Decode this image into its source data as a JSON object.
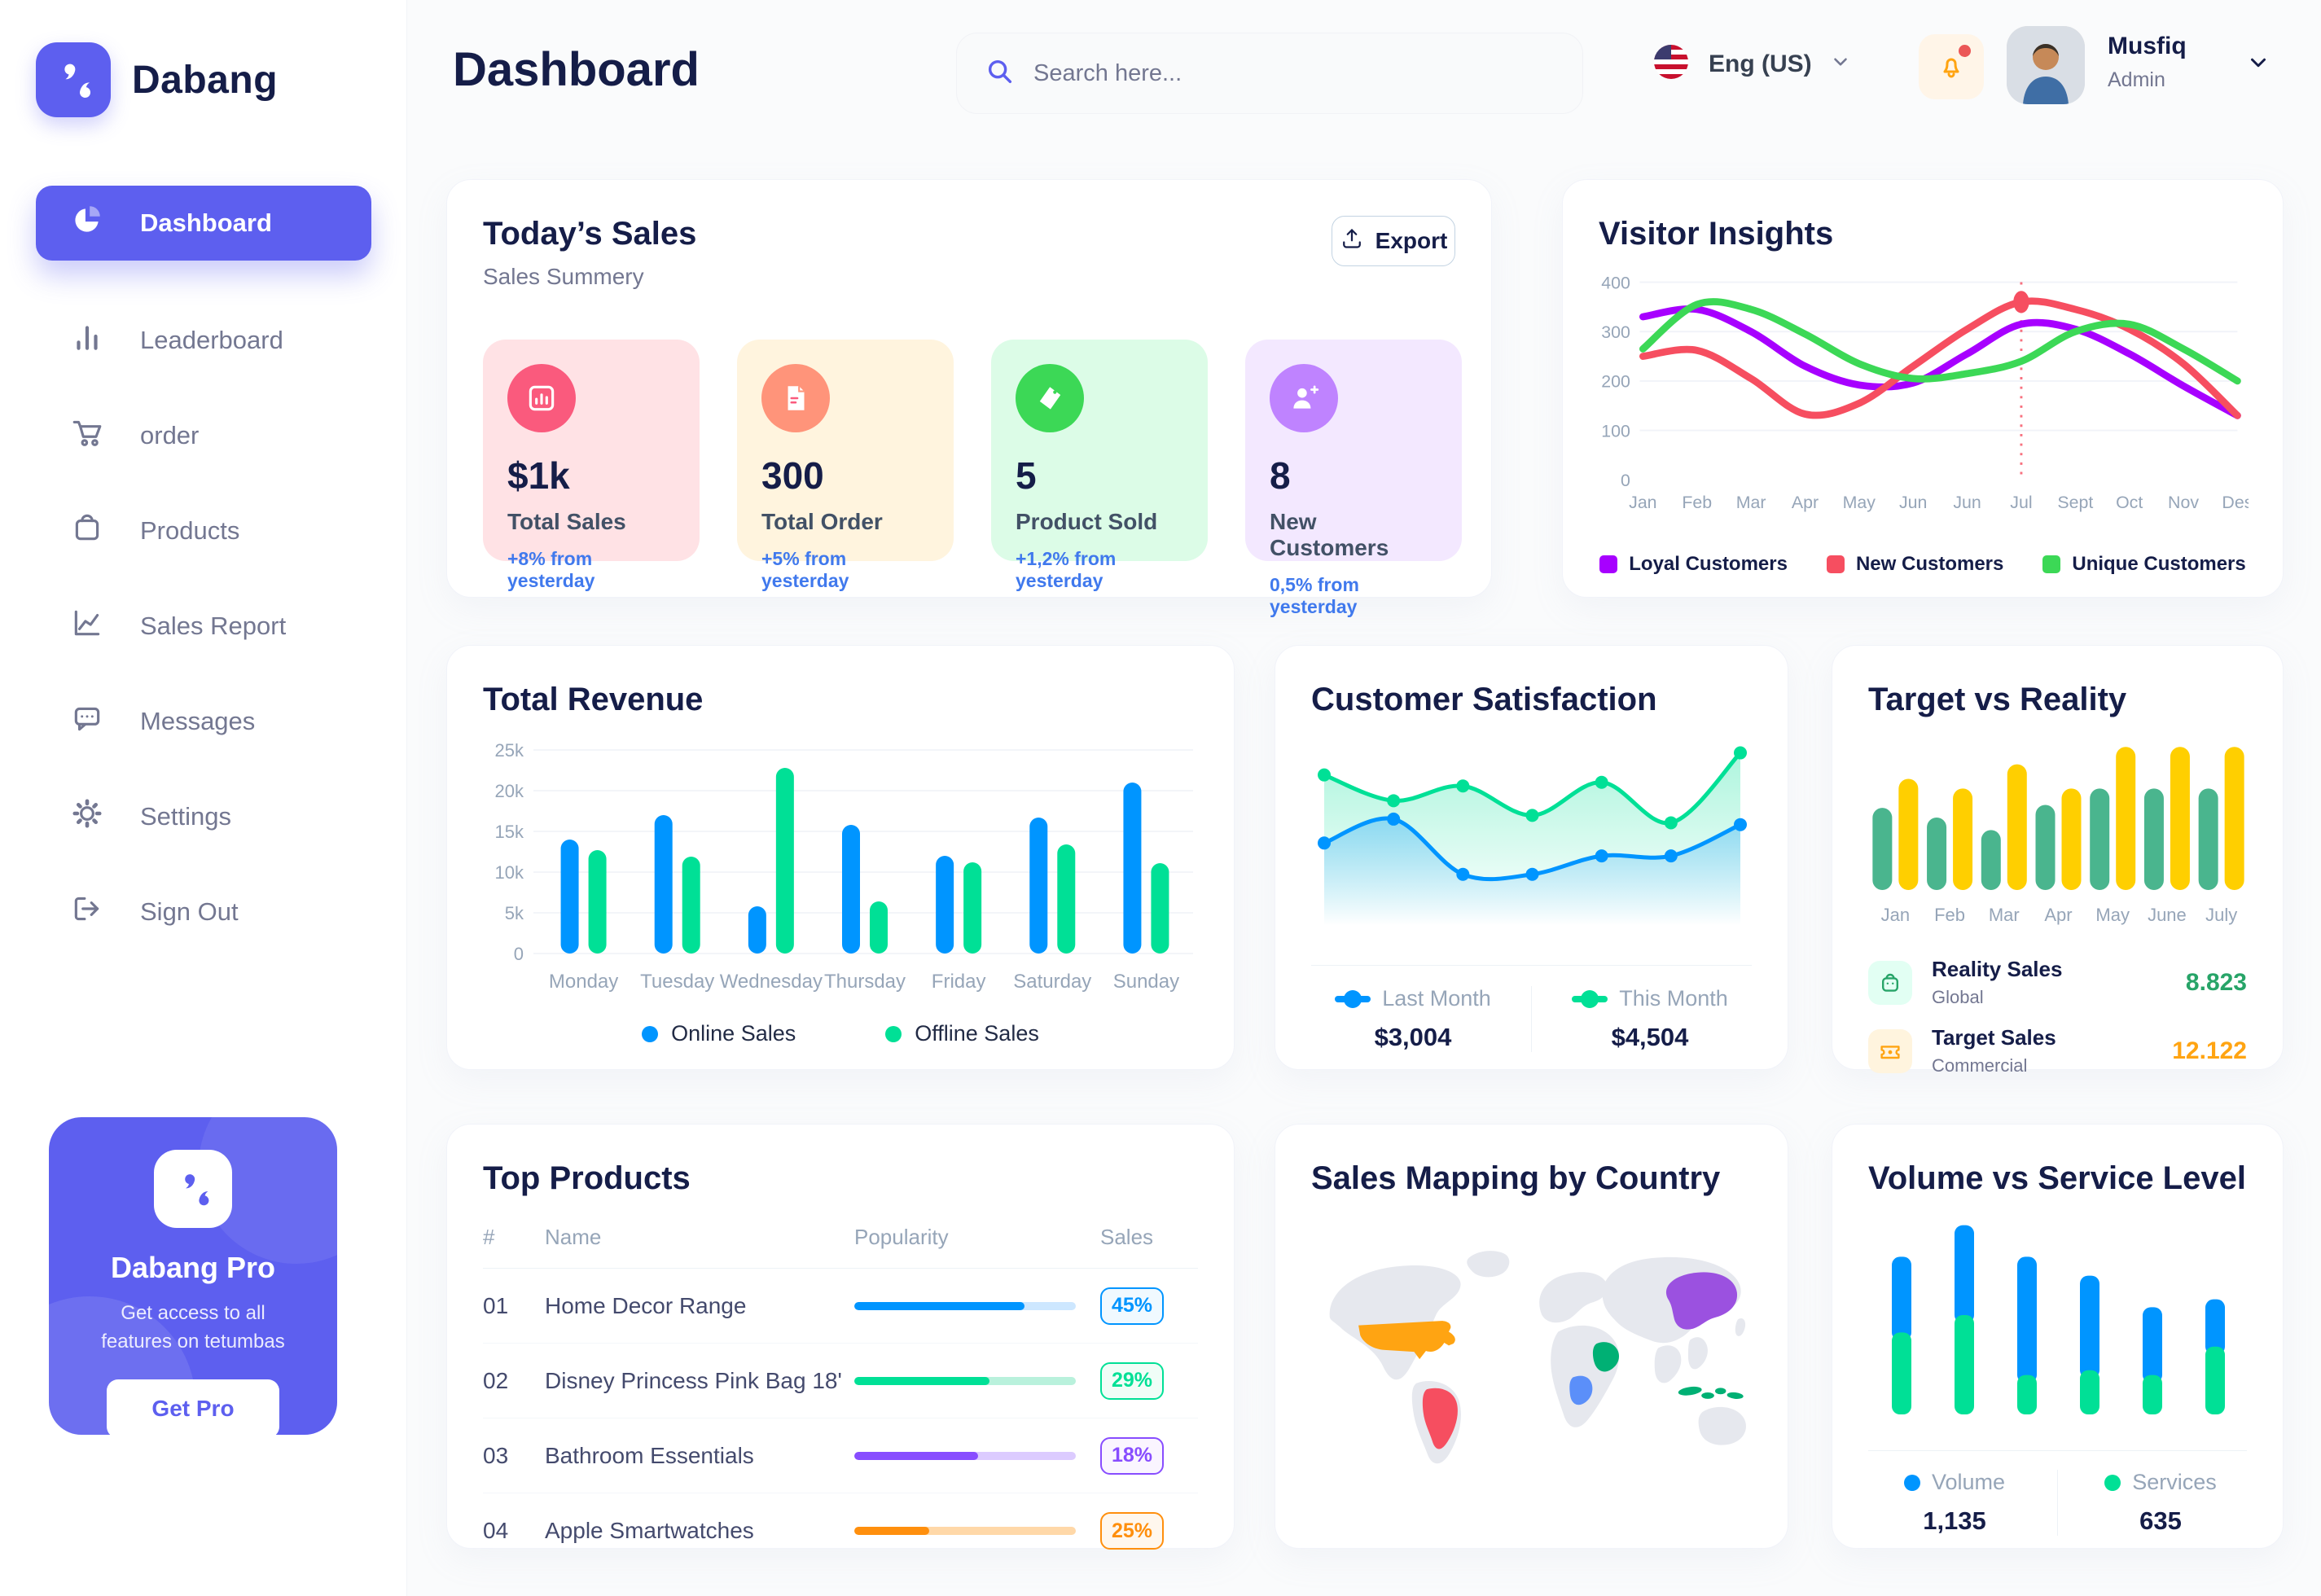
{
  "sidebar": {
    "brand": "Dabang",
    "items": [
      {
        "id": "dashboard",
        "label": "Dashboard",
        "active": true
      },
      {
        "id": "leaderboard",
        "label": "Leaderboard",
        "active": false
      },
      {
        "id": "order",
        "label": "order",
        "active": false
      },
      {
        "id": "products",
        "label": "Products",
        "active": false
      },
      {
        "id": "sales-report",
        "label": "Sales Report",
        "active": false
      },
      {
        "id": "messages",
        "label": "Messages",
        "active": false
      },
      {
        "id": "settings",
        "label": "Settings",
        "active": false
      },
      {
        "id": "sign-out",
        "label": "Sign Out",
        "active": false
      }
    ],
    "promo": {
      "title": "Dabang Pro",
      "subtitle": "Get access to all features on tetumbas",
      "cta": "Get Pro"
    }
  },
  "header": {
    "title": "Dashboard",
    "search": {
      "placeholder": "Search here..."
    },
    "language": {
      "label": "Eng (US)"
    },
    "user": {
      "name": "Musfiq",
      "role": "Admin"
    }
  },
  "cards": {
    "todays_sales": {
      "title": "Today’s Sales",
      "subtitle": "Sales Summery",
      "export_label": "Export",
      "stats": [
        {
          "value": "$1k",
          "label": "Total Sales",
          "delta": "+8% from yesterday",
          "bg": "#FFE2E5",
          "icon_bg": "#FA5A7D",
          "icon": "bar-chart"
        },
        {
          "value": "300",
          "label": "Total Order",
          "delta": "+5% from yesterday",
          "bg": "#FFF4DE",
          "icon_bg": "#FF947A",
          "icon": "receipt"
        },
        {
          "value": "5",
          "label": "Product Sold",
          "delta": "+1,2% from yesterday",
          "bg": "#DCFCE7",
          "icon_bg": "#3CD856",
          "icon": "tag"
        },
        {
          "value": "8",
          "label": "New Customers",
          "delta": "0,5% from yesterday",
          "bg": "#F3E8FF",
          "icon_bg": "#BF83FF",
          "icon": "user-plus"
        }
      ]
    }
  },
  "chart_data": [
    {
      "id": "visitor_insights",
      "type": "line",
      "title": "Visitor Insights",
      "x": [
        "Jan",
        "Feb",
        "Mar",
        "Apr",
        "May",
        "Jun",
        "Jun",
        "Jul",
        "Sept",
        "Oct",
        "Nov",
        "Des"
      ],
      "ylim": [
        0,
        400
      ],
      "yticks": [
        0,
        100,
        200,
        300,
        400
      ],
      "highlight_index": 7,
      "series": [
        {
          "name": "Loyal Customers",
          "color": "#A700FF",
          "values": [
            330,
            345,
            300,
            230,
            192,
            196,
            255,
            315,
            305,
            255,
            190,
            130
          ]
        },
        {
          "name": "New Customers",
          "color": "#F64E60",
          "values": [
            250,
            262,
            205,
            133,
            155,
            230,
            305,
            360,
            345,
            305,
            235,
            130
          ]
        },
        {
          "name": "Unique Customers",
          "color": "#3CD856",
          "values": [
            265,
            355,
            345,
            295,
            235,
            205,
            215,
            240,
            300,
            315,
            265,
            200
          ]
        }
      ]
    },
    {
      "id": "total_revenue",
      "type": "bar",
      "title": "Total Revenue",
      "categories": [
        "Monday",
        "Tuesday",
        "Wednesday",
        "Thursday",
        "Friday",
        "Saturday",
        "Sunday"
      ],
      "ylim": [
        0,
        25
      ],
      "yticks": [
        "0",
        "5k",
        "10k",
        "15k",
        "20k",
        "25k"
      ],
      "series": [
        {
          "name": "Online Sales",
          "color": "#0095FF",
          "values": [
            14,
            17,
            5.8,
            15.8,
            12,
            16.7,
            21
          ]
        },
        {
          "name": "Offline Sales",
          "color": "#00E096",
          "values": [
            12.7,
            11.9,
            22.8,
            6.4,
            11.2,
            13.4,
            11.1
          ]
        }
      ]
    },
    {
      "id": "customer_satisfaction",
      "type": "area",
      "title": "Customer Satisfaction",
      "ylim": [
        0,
        100
      ],
      "series": [
        {
          "name": "Last Month",
          "color": "#0095FF",
          "total": "$3,004",
          "values": [
            45,
            58,
            28,
            28,
            38,
            38,
            55
          ]
        },
        {
          "name": "This Month",
          "color": "#00E096",
          "total": "$4,504",
          "values": [
            82,
            68,
            76,
            60,
            78,
            56,
            94
          ]
        }
      ]
    },
    {
      "id": "target_vs_reality",
      "type": "bar",
      "title": "Target vs Reality",
      "categories": [
        "Jan",
        "Feb",
        "Mar",
        "Apr",
        "May",
        "June",
        "July"
      ],
      "ylim": [
        0,
        16
      ],
      "series": [
        {
          "name": "Reality Sales",
          "subtitle": "Global",
          "color": "#4AB58E",
          "value_label": "8.823",
          "value_color": "#27A468",
          "values": [
            8.5,
            7.5,
            6.2,
            8.8,
            10.5,
            10.5,
            10.5
          ]
        },
        {
          "name": "Target Sales",
          "subtitle": "Commercial",
          "color": "#FFCF00",
          "value_label": "12.122",
          "value_color": "#FFA412",
          "values": [
            11.5,
            10.5,
            13,
            10.5,
            14.8,
            14.8,
            14.8
          ]
        }
      ]
    },
    {
      "id": "volume_vs_service",
      "type": "stacked-bar",
      "title": "Volume vs Service Level",
      "ylim": [
        0,
        125
      ],
      "series": [
        {
          "name": "Volume",
          "color": "#0095FF",
          "total": "1,135",
          "values": [
            48,
            57,
            75,
            60,
            43,
            30
          ]
        },
        {
          "name": "Services",
          "color": "#00E096",
          "total": "635",
          "values": [
            52,
            63,
            25,
            28,
            25,
            43
          ]
        }
      ]
    }
  ],
  "top_products": {
    "title": "Top Products",
    "headers": {
      "num": "#",
      "name": "Name",
      "popularity": "Popularity",
      "sales": "Sales"
    },
    "rows": [
      {
        "num": "01",
        "name": "Home Decor Range",
        "popularity": 77,
        "sales": "45%",
        "color": "#0095FF",
        "track": "#CDE7FF",
        "badge_bg": "#F0F9FF"
      },
      {
        "num": "02",
        "name": "Disney Princess Pink Bag 18'",
        "popularity": 61,
        "sales": "29%",
        "color": "#00E096",
        "track": "#B9F1DC",
        "badge_bg": "#F0FDF7"
      },
      {
        "num": "03",
        "name": "Bathroom Essentials",
        "popularity": 56,
        "sales": "18%",
        "color": "#884DFF",
        "track": "#DCCBFF",
        "badge_bg": "#FAF5FF"
      },
      {
        "num": "04",
        "name": "Apple Smartwatches",
        "popularity": 34,
        "sales": "25%",
        "color": "#FF8F0D",
        "track": "#FFD8A8",
        "badge_bg": "#FFF7ED"
      }
    ]
  },
  "map": {
    "title": "Sales Mapping by Country",
    "land_color": "#E6E8EE",
    "regions": [
      {
        "id": "united-states",
        "label": "United States",
        "color": "#FFA412"
      },
      {
        "id": "brazil",
        "label": "Brazil",
        "color": "#F64E60"
      },
      {
        "id": "china",
        "label": "China",
        "color": "#9B51E0"
      },
      {
        "id": "saudi-arabia",
        "label": "Saudi Arabia",
        "color": "#00B074"
      },
      {
        "id": "dr-congo",
        "label": "DR Congo",
        "color": "#5B8FF9"
      },
      {
        "id": "indonesia",
        "label": "Indonesia",
        "color": "#00B074"
      }
    ]
  }
}
